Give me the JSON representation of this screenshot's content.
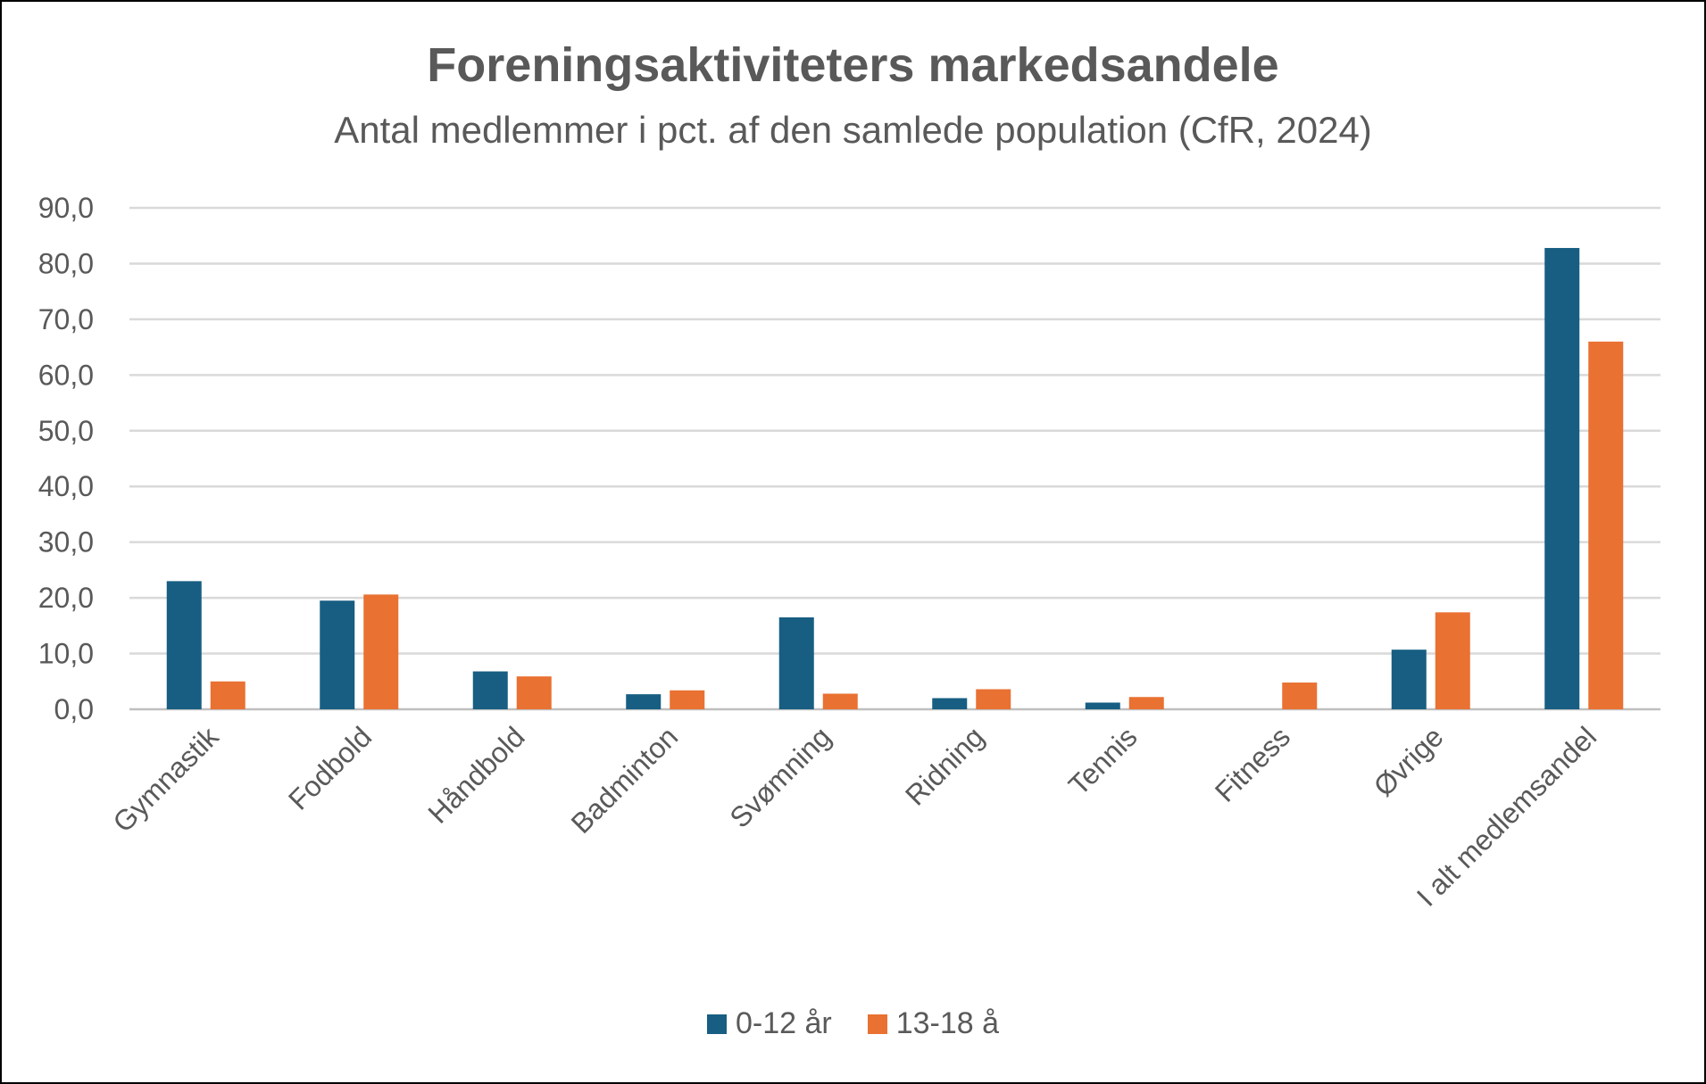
{
  "chart_data": {
    "type": "bar",
    "title": "Foreningsaktiviteters markedsandele",
    "subtitle": "Antal medlemmer i pct. af den samlede population (CfR, 2024)",
    "categories": [
      "Gymnastik",
      "Fodbold",
      "Håndbold",
      "Badminton",
      "Svømning",
      "Ridning",
      "Tennis",
      "Fitness",
      "Øvrige",
      "I alt medlemsandel"
    ],
    "series": [
      {
        "name": "0-12 år",
        "color": "#175E82",
        "values": [
          23.0,
          19.5,
          6.8,
          2.7,
          16.5,
          2.0,
          1.2,
          0.0,
          10.7,
          82.8
        ]
      },
      {
        "name": "13-18 å",
        "color": "#E97132",
        "values": [
          5.0,
          20.6,
          5.9,
          3.4,
          2.8,
          3.6,
          2.2,
          4.8,
          17.4,
          66.0
        ]
      }
    ],
    "yticks": [
      "0,0",
      "10,0",
      "20,0",
      "30,0",
      "40,0",
      "50,0",
      "60,0",
      "70,0",
      "80,0",
      "90,0"
    ],
    "ylim": [
      0,
      90
    ],
    "grid": true,
    "legend_position": "bottom"
  }
}
